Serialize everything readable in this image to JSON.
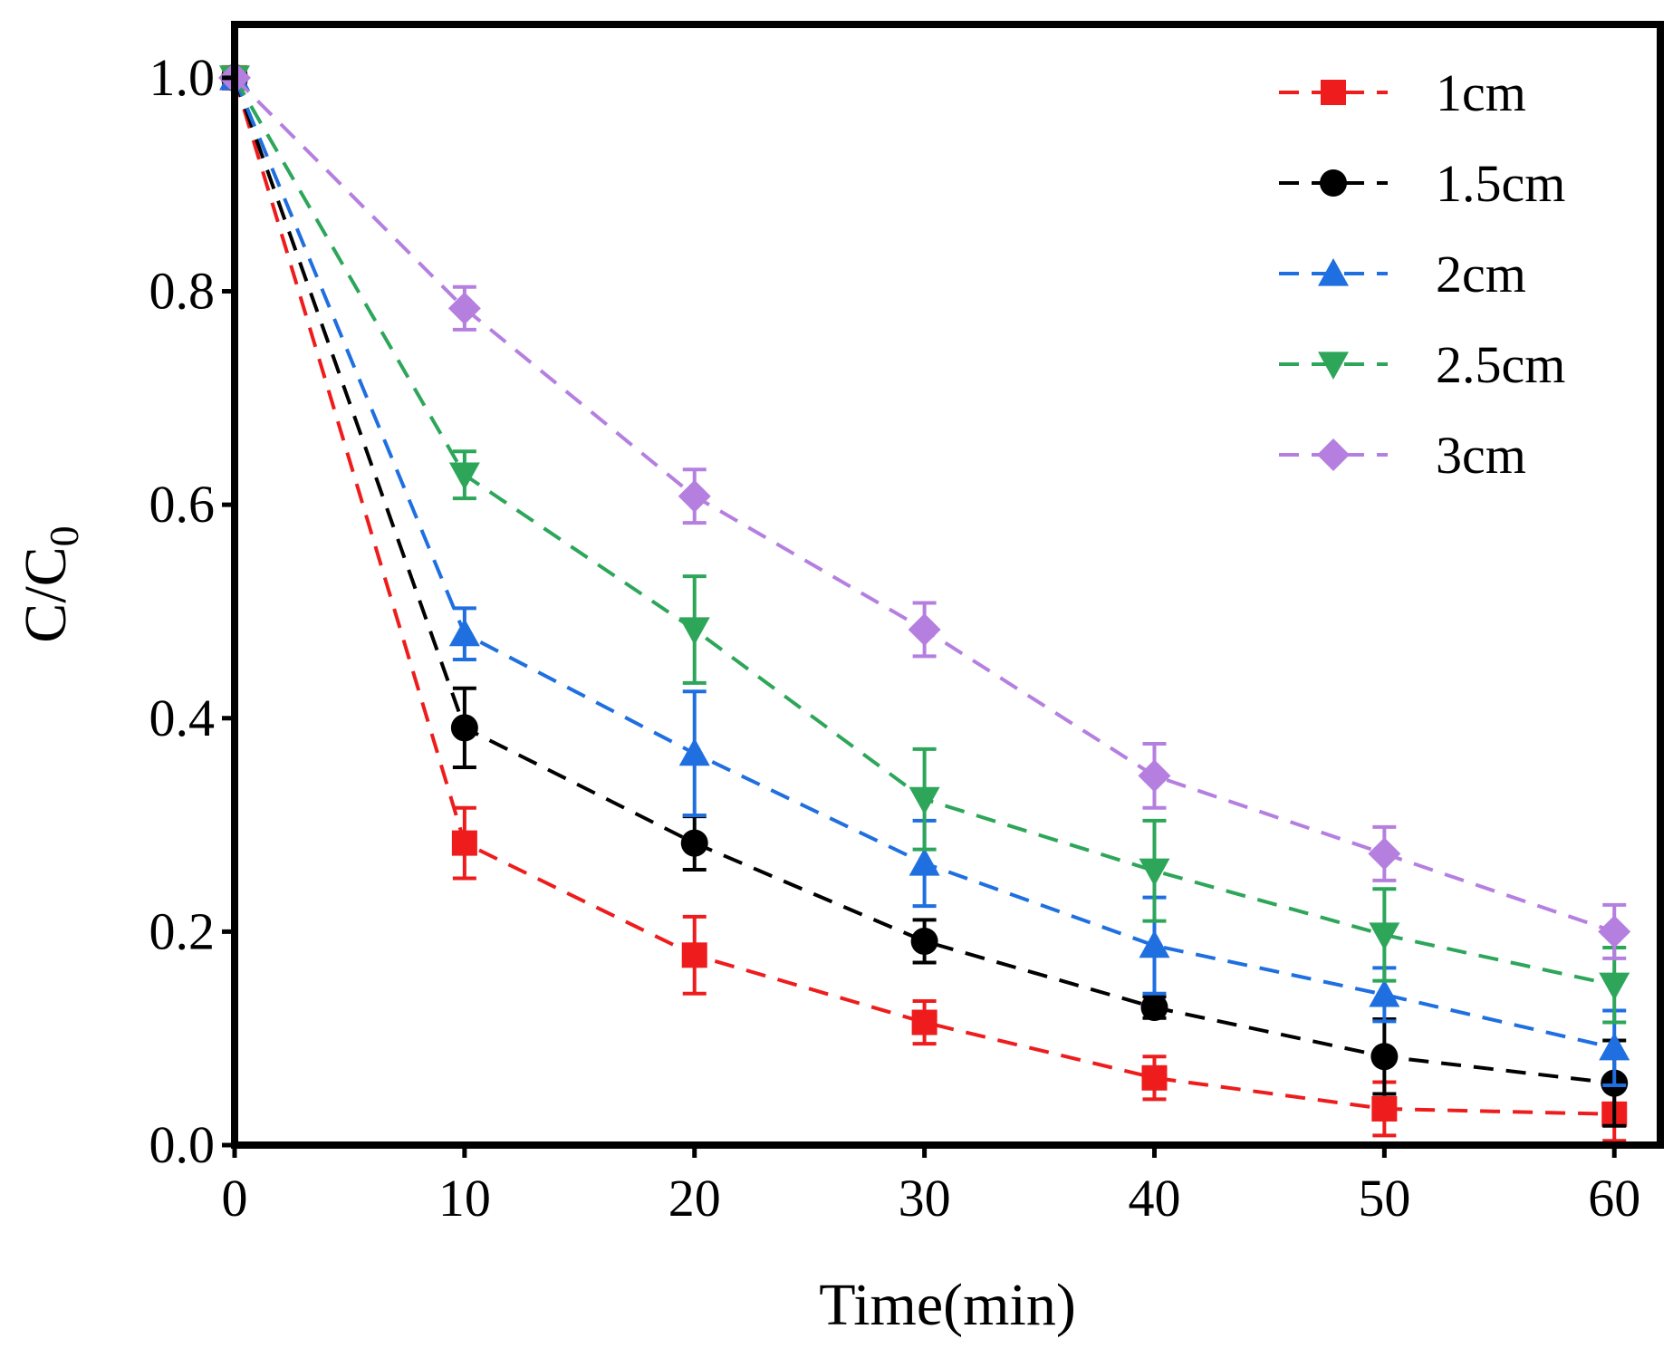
{
  "chart_data": {
    "type": "line",
    "title": "",
    "xlabel": "Time(min)",
    "ylabel": {
      "base": "C/C",
      "subscript": "0"
    },
    "xlim": [
      0,
      62
    ],
    "ylim": [
      0,
      1.05
    ],
    "x": [
      0,
      10,
      20,
      30,
      40,
      50,
      60
    ],
    "x_ticks": [
      "0",
      "10",
      "20",
      "30",
      "40",
      "50",
      "60"
    ],
    "y_ticks": [
      "0.0",
      "0.2",
      "0.4",
      "0.6",
      "0.8",
      "1.0"
    ],
    "y_tick_values": [
      0,
      0.2,
      0.4,
      0.6,
      0.8,
      1.0
    ],
    "legend_position": "top-right",
    "grid": false,
    "series": [
      {
        "name": "1cm",
        "color": "#ee1c1c",
        "marker": "square",
        "values": [
          1.0,
          0.283,
          0.178,
          0.115,
          0.063,
          0.034,
          0.029
        ],
        "errors": [
          0,
          0.033,
          0.036,
          0.02,
          0.02,
          0.025,
          0.025
        ]
      },
      {
        "name": "1.5cm",
        "color": "#000000",
        "marker": "circle",
        "values": [
          1.0,
          0.391,
          0.283,
          0.191,
          0.129,
          0.083,
          0.058
        ],
        "errors": [
          0,
          0.037,
          0.025,
          0.02,
          0.01,
          0.035,
          0.04
        ]
      },
      {
        "name": "2cm",
        "color": "#1f6fe0",
        "marker": "triangle-up",
        "values": [
          1.0,
          0.479,
          0.367,
          0.264,
          0.187,
          0.141,
          0.091
        ],
        "errors": [
          0,
          0.024,
          0.058,
          0.04,
          0.045,
          0.025,
          0.035
        ]
      },
      {
        "name": "2.5cm",
        "color": "#2da65a",
        "marker": "triangle-down",
        "values": [
          1.0,
          0.628,
          0.483,
          0.324,
          0.257,
          0.197,
          0.15
        ],
        "errors": [
          0,
          0.022,
          0.05,
          0.047,
          0.047,
          0.043,
          0.035
        ]
      },
      {
        "name": "3cm",
        "color": "#b57fe0",
        "marker": "diamond",
        "values": [
          1.0,
          0.784,
          0.608,
          0.483,
          0.346,
          0.273,
          0.2
        ],
        "errors": [
          0,
          0.02,
          0.025,
          0.025,
          0.03,
          0.025,
          0.025
        ]
      }
    ]
  }
}
